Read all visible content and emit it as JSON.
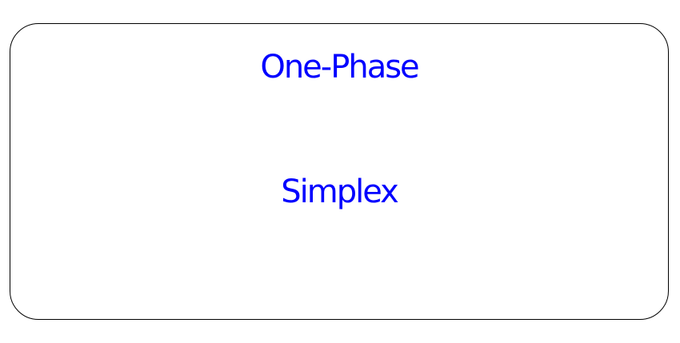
{
  "node": {
    "lines": [
      "One-Phase",
      "Simplex"
    ],
    "text_color": "#0000ff",
    "border_color": "#000000",
    "background_color": "#ffffff"
  }
}
